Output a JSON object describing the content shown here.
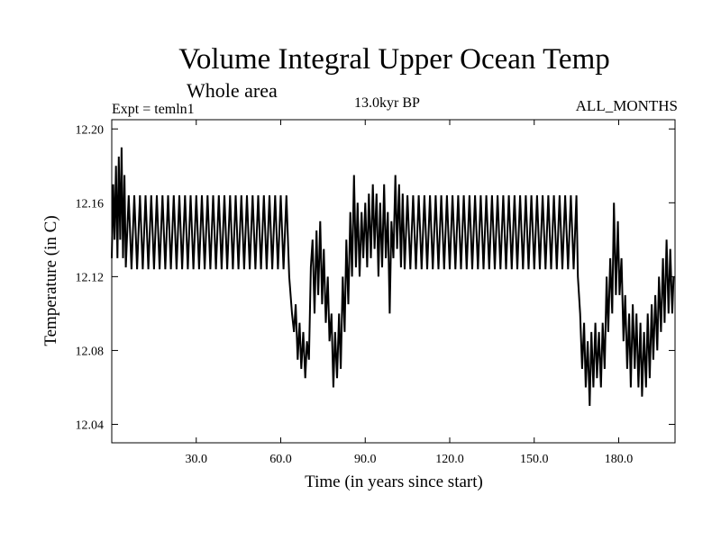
{
  "chart_data": {
    "type": "line",
    "title": "Volume Integral Upper Ocean Temp",
    "subtitle": "Whole area",
    "annotations": {
      "experiment": "Expt = temln1",
      "period": "13.0kyr BP",
      "months": "ALL_MONTHS"
    },
    "xlabel": "Time (in years since start)",
    "ylabel": "Temperature (in C)",
    "xlim": [
      0,
      200
    ],
    "ylim": [
      12.03,
      12.205
    ],
    "x_ticks": [
      30,
      60,
      90,
      120,
      150,
      180
    ],
    "x_tick_labels": [
      "30.0",
      "60.0",
      "90.0",
      "120.0",
      "150.0",
      "180.0"
    ],
    "y_ticks": [
      12.04,
      12.08,
      12.12,
      12.16,
      12.2
    ],
    "y_tick_labels": [
      "12.04",
      "12.08",
      "12.12",
      "12.16",
      "12.20"
    ],
    "series": [
      {
        "name": "Temperature",
        "color": "#000000",
        "points": [
          [
            0.0,
            12.13
          ],
          [
            0.5,
            12.17
          ],
          [
            1.0,
            12.14
          ],
          [
            1.5,
            12.18
          ],
          [
            2.0,
            12.13
          ],
          [
            2.5,
            12.185
          ],
          [
            3.0,
            12.14
          ],
          [
            3.5,
            12.19
          ],
          [
            4.0,
            12.13
          ],
          [
            4.5,
            12.175
          ],
          [
            5.0,
            12.125
          ],
          [
            6.0,
            12.164
          ],
          [
            7.0,
            12.124
          ],
          [
            8.0,
            12.164
          ],
          [
            9.0,
            12.124
          ],
          [
            10.0,
            12.164
          ],
          [
            11.0,
            12.124
          ],
          [
            12.0,
            12.164
          ],
          [
            13.0,
            12.124
          ],
          [
            14.0,
            12.164
          ],
          [
            15.0,
            12.124
          ],
          [
            16.0,
            12.164
          ],
          [
            17.0,
            12.124
          ],
          [
            18.0,
            12.164
          ],
          [
            19.0,
            12.124
          ],
          [
            20.0,
            12.164
          ],
          [
            21.0,
            12.124
          ],
          [
            22.0,
            12.164
          ],
          [
            23.0,
            12.124
          ],
          [
            24.0,
            12.164
          ],
          [
            25.0,
            12.124
          ],
          [
            26.0,
            12.164
          ],
          [
            27.0,
            12.124
          ],
          [
            28.0,
            12.164
          ],
          [
            29.0,
            12.124
          ],
          [
            30.0,
            12.164
          ],
          [
            31.0,
            12.124
          ],
          [
            32.0,
            12.164
          ],
          [
            33.0,
            12.124
          ],
          [
            34.0,
            12.164
          ],
          [
            35.0,
            12.124
          ],
          [
            36.0,
            12.164
          ],
          [
            37.0,
            12.124
          ],
          [
            38.0,
            12.164
          ],
          [
            39.0,
            12.124
          ],
          [
            40.0,
            12.164
          ],
          [
            41.0,
            12.124
          ],
          [
            42.0,
            12.164
          ],
          [
            43.0,
            12.124
          ],
          [
            44.0,
            12.164
          ],
          [
            45.0,
            12.124
          ],
          [
            46.0,
            12.164
          ],
          [
            47.0,
            12.124
          ],
          [
            48.0,
            12.164
          ],
          [
            49.0,
            12.124
          ],
          [
            50.0,
            12.164
          ],
          [
            51.0,
            12.124
          ],
          [
            52.0,
            12.164
          ],
          [
            53.0,
            12.124
          ],
          [
            54.0,
            12.164
          ],
          [
            55.0,
            12.124
          ],
          [
            56.0,
            12.164
          ],
          [
            57.0,
            12.124
          ],
          [
            58.0,
            12.164
          ],
          [
            59.0,
            12.124
          ],
          [
            60.0,
            12.164
          ],
          [
            61.0,
            12.124
          ],
          [
            62.0,
            12.164
          ],
          [
            63.0,
            12.12
          ],
          [
            64.0,
            12.1
          ],
          [
            64.7,
            12.09
          ],
          [
            65.3,
            12.105
          ],
          [
            66.0,
            12.075
          ],
          [
            66.7,
            12.095
          ],
          [
            67.3,
            12.07
          ],
          [
            68.0,
            12.09
          ],
          [
            68.7,
            12.065
          ],
          [
            69.3,
            12.085
          ],
          [
            70.0,
            12.075
          ],
          [
            70.7,
            12.125
          ],
          [
            71.3,
            12.14
          ],
          [
            72.0,
            12.1
          ],
          [
            72.7,
            12.145
          ],
          [
            73.3,
            12.11
          ],
          [
            74.0,
            12.15
          ],
          [
            74.7,
            12.105
          ],
          [
            75.3,
            12.135
          ],
          [
            76.0,
            12.095
          ],
          [
            76.7,
            12.12
          ],
          [
            77.3,
            12.085
          ],
          [
            78.0,
            12.1
          ],
          [
            78.7,
            12.06
          ],
          [
            79.3,
            12.09
          ],
          [
            80.0,
            12.065
          ],
          [
            80.7,
            12.1
          ],
          [
            81.3,
            12.07
          ],
          [
            82.0,
            12.12
          ],
          [
            82.7,
            12.09
          ],
          [
            83.3,
            12.14
          ],
          [
            84.0,
            12.105
          ],
          [
            84.7,
            12.155
          ],
          [
            85.3,
            12.12
          ],
          [
            86.0,
            12.175
          ],
          [
            86.7,
            12.125
          ],
          [
            87.3,
            12.16
          ],
          [
            88.0,
            12.12
          ],
          [
            88.7,
            12.155
          ],
          [
            89.3,
            12.13
          ],
          [
            90.0,
            12.16
          ],
          [
            90.7,
            12.125
          ],
          [
            91.3,
            12.165
          ],
          [
            92.0,
            12.13
          ],
          [
            92.7,
            12.17
          ],
          [
            93.3,
            12.135
          ],
          [
            94.0,
            12.165
          ],
          [
            94.7,
            12.12
          ],
          [
            95.3,
            12.16
          ],
          [
            96.0,
            12.125
          ],
          [
            96.7,
            12.17
          ],
          [
            97.3,
            12.13
          ],
          [
            98.0,
            12.155
          ],
          [
            98.7,
            12.1
          ],
          [
            99.3,
            12.15
          ],
          [
            100.0,
            12.13
          ],
          [
            100.7,
            12.175
          ],
          [
            101.3,
            12.135
          ],
          [
            102.0,
            12.17
          ],
          [
            102.7,
            12.125
          ],
          [
            103.3,
            12.165
          ],
          [
            104.0,
            12.124
          ],
          [
            105.0,
            12.164
          ],
          [
            106.0,
            12.124
          ],
          [
            107.0,
            12.164
          ],
          [
            108.0,
            12.124
          ],
          [
            109.0,
            12.164
          ],
          [
            110.0,
            12.124
          ],
          [
            111.0,
            12.164
          ],
          [
            112.0,
            12.124
          ],
          [
            113.0,
            12.164
          ],
          [
            114.0,
            12.124
          ],
          [
            115.0,
            12.164
          ],
          [
            116.0,
            12.124
          ],
          [
            117.0,
            12.164
          ],
          [
            118.0,
            12.124
          ],
          [
            119.0,
            12.164
          ],
          [
            120.0,
            12.124
          ],
          [
            121.0,
            12.164
          ],
          [
            122.0,
            12.124
          ],
          [
            123.0,
            12.164
          ],
          [
            124.0,
            12.124
          ],
          [
            125.0,
            12.164
          ],
          [
            126.0,
            12.124
          ],
          [
            127.0,
            12.164
          ],
          [
            128.0,
            12.124
          ],
          [
            129.0,
            12.164
          ],
          [
            130.0,
            12.124
          ],
          [
            131.0,
            12.164
          ],
          [
            132.0,
            12.124
          ],
          [
            133.0,
            12.164
          ],
          [
            134.0,
            12.124
          ],
          [
            135.0,
            12.164
          ],
          [
            136.0,
            12.124
          ],
          [
            137.0,
            12.164
          ],
          [
            138.0,
            12.124
          ],
          [
            139.0,
            12.164
          ],
          [
            140.0,
            12.124
          ],
          [
            141.0,
            12.164
          ],
          [
            142.0,
            12.124
          ],
          [
            143.0,
            12.164
          ],
          [
            144.0,
            12.124
          ],
          [
            145.0,
            12.164
          ],
          [
            146.0,
            12.124
          ],
          [
            147.0,
            12.164
          ],
          [
            148.0,
            12.124
          ],
          [
            149.0,
            12.164
          ],
          [
            150.0,
            12.124
          ],
          [
            151.0,
            12.164
          ],
          [
            152.0,
            12.124
          ],
          [
            153.0,
            12.164
          ],
          [
            154.0,
            12.124
          ],
          [
            155.0,
            12.164
          ],
          [
            156.0,
            12.124
          ],
          [
            157.0,
            12.164
          ],
          [
            158.0,
            12.124
          ],
          [
            159.0,
            12.164
          ],
          [
            160.0,
            12.124
          ],
          [
            161.0,
            12.164
          ],
          [
            162.0,
            12.124
          ],
          [
            163.0,
            12.164
          ],
          [
            164.0,
            12.124
          ],
          [
            165.0,
            12.164
          ],
          [
            165.5,
            12.12
          ],
          [
            166.3,
            12.1
          ],
          [
            167.0,
            12.07
          ],
          [
            167.7,
            12.095
          ],
          [
            168.3,
            12.06
          ],
          [
            169.0,
            12.085
          ],
          [
            169.7,
            12.05
          ],
          [
            170.3,
            12.09
          ],
          [
            171.0,
            12.06
          ],
          [
            171.7,
            12.095
          ],
          [
            172.3,
            12.065
          ],
          [
            173.0,
            12.09
          ],
          [
            173.7,
            12.06
          ],
          [
            174.3,
            12.095
          ],
          [
            175.0,
            12.07
          ],
          [
            175.7,
            12.12
          ],
          [
            176.3,
            12.09
          ],
          [
            177.0,
            12.13
          ],
          [
            177.7,
            12.1
          ],
          [
            178.3,
            12.16
          ],
          [
            179.0,
            12.11
          ],
          [
            179.7,
            12.15
          ],
          [
            180.3,
            12.11
          ],
          [
            181.0,
            12.13
          ],
          [
            181.7,
            12.085
          ],
          [
            182.3,
            12.11
          ],
          [
            183.0,
            12.07
          ],
          [
            183.7,
            12.1
          ],
          [
            184.3,
            12.06
          ],
          [
            185.0,
            12.105
          ],
          [
            185.7,
            12.07
          ],
          [
            186.3,
            12.1
          ],
          [
            187.0,
            12.06
          ],
          [
            187.7,
            12.095
          ],
          [
            188.3,
            12.055
          ],
          [
            189.0,
            12.09
          ],
          [
            189.7,
            12.06
          ],
          [
            190.3,
            12.1
          ],
          [
            191.0,
            12.065
          ],
          [
            191.7,
            12.105
          ],
          [
            192.3,
            12.075
          ],
          [
            193.0,
            12.11
          ],
          [
            193.7,
            12.08
          ],
          [
            194.3,
            12.12
          ],
          [
            195.0,
            12.09
          ],
          [
            195.7,
            12.13
          ],
          [
            196.3,
            12.095
          ],
          [
            197.0,
            12.14
          ],
          [
            197.7,
            12.1
          ],
          [
            198.3,
            12.135
          ],
          [
            199.0,
            12.1
          ],
          [
            199.5,
            12.12
          ]
        ]
      }
    ]
  }
}
